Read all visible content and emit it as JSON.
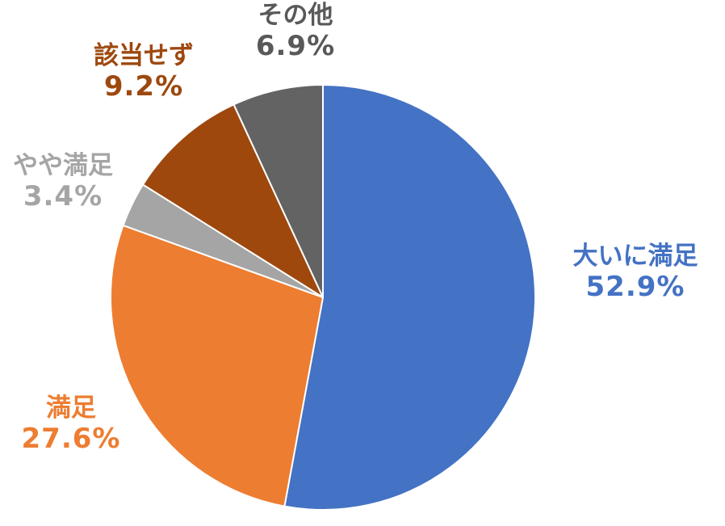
{
  "chart_data": {
    "type": "pie",
    "start_angle_deg": 0,
    "direction": "clockwise",
    "slices": [
      {
        "label": "大いに満足",
        "value": 52.9,
        "value_label": "52.9%",
        "color": "#4472C4"
      },
      {
        "label": "満足",
        "value": 27.6,
        "value_label": "27.6%",
        "color": "#ED7D31"
      },
      {
        "label": "やや満足",
        "value": 3.4,
        "value_label": "3.4%",
        "color": "#A5A5A5"
      },
      {
        "label": "該当せず",
        "value": 9.2,
        "value_label": "9.2%",
        "color": "#9E480E"
      },
      {
        "label": "その他",
        "value": 6.9,
        "value_label": "6.9%",
        "color": "#636363"
      }
    ]
  }
}
